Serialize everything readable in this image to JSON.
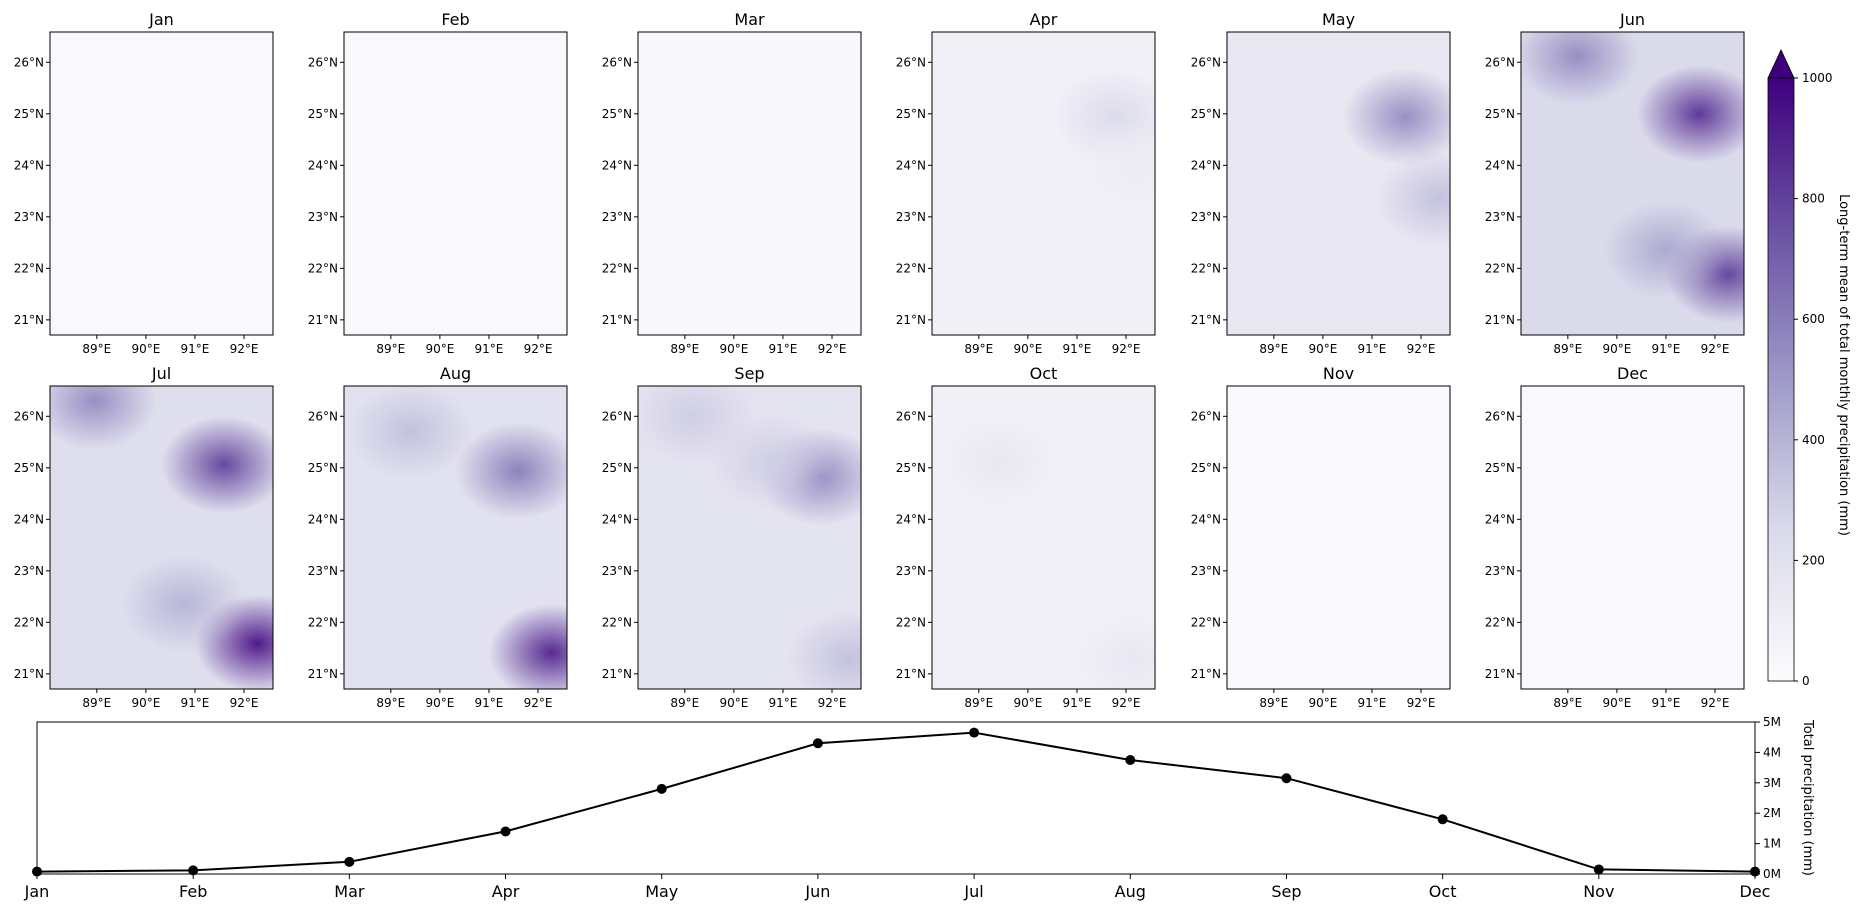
{
  "maps": {
    "lat_ticks": [
      "26°N",
      "25°N",
      "24°N",
      "23°N",
      "22°N",
      "21°N"
    ],
    "lon_ticks": [
      "89°E",
      "90°E",
      "91°E",
      "92°E"
    ],
    "panels": [
      {
        "title": "Jan",
        "level": 0.02,
        "hot": []
      },
      {
        "title": "Feb",
        "level": 0.02,
        "hot": []
      },
      {
        "title": "Mar",
        "level": 0.03,
        "hot": []
      },
      {
        "title": "Apr",
        "level": 0.08,
        "hot": [
          {
            "u": 0.82,
            "v": 0.28,
            "a": 0.25
          },
          {
            "u": 0.92,
            "v": 0.45,
            "a": 0.12
          }
        ]
      },
      {
        "title": "May",
        "level": 0.15,
        "hot": [
          {
            "u": 0.8,
            "v": 0.28,
            "a": 0.55
          },
          {
            "u": 0.95,
            "v": 0.55,
            "a": 0.35
          },
          {
            "u": 0.3,
            "v": 0.1,
            "a": 0.15
          }
        ]
      },
      {
        "title": "Jun",
        "level": 0.25,
        "hot": [
          {
            "u": 0.8,
            "v": 0.27,
            "a": 0.85
          },
          {
            "u": 0.93,
            "v": 0.8,
            "a": 0.8
          },
          {
            "u": 0.25,
            "v": 0.08,
            "a": 0.55
          },
          {
            "u": 0.65,
            "v": 0.72,
            "a": 0.45
          }
        ]
      },
      {
        "title": "Jul",
        "level": 0.22,
        "hot": [
          {
            "u": 0.78,
            "v": 0.26,
            "a": 0.8
          },
          {
            "u": 0.93,
            "v": 0.85,
            "a": 0.95
          },
          {
            "u": 0.2,
            "v": 0.05,
            "a": 0.55
          },
          {
            "u": 0.6,
            "v": 0.72,
            "a": 0.4
          }
        ]
      },
      {
        "title": "Aug",
        "level": 0.2,
        "hot": [
          {
            "u": 0.78,
            "v": 0.28,
            "a": 0.6
          },
          {
            "u": 0.93,
            "v": 0.88,
            "a": 0.9
          },
          {
            "u": 0.3,
            "v": 0.15,
            "a": 0.35
          }
        ]
      },
      {
        "title": "Sep",
        "level": 0.18,
        "hot": [
          {
            "u": 0.82,
            "v": 0.3,
            "a": 0.55
          },
          {
            "u": 0.25,
            "v": 0.1,
            "a": 0.3
          },
          {
            "u": 0.6,
            "v": 0.25,
            "a": 0.3
          },
          {
            "u": 0.95,
            "v": 0.9,
            "a": 0.35
          }
        ]
      },
      {
        "title": "Oct",
        "level": 0.08,
        "hot": [
          {
            "u": 0.3,
            "v": 0.25,
            "a": 0.15
          },
          {
            "u": 0.9,
            "v": 0.9,
            "a": 0.15
          }
        ]
      },
      {
        "title": "Nov",
        "level": 0.02,
        "hot": []
      },
      {
        "title": "Dec",
        "level": 0.02,
        "hot": []
      }
    ]
  },
  "colorbar": {
    "label": "Long-term mean of total monthly precipitation (mm)",
    "ticks": [
      "0",
      "200",
      "400",
      "600",
      "800",
      "1000"
    ],
    "min": 0,
    "max": 1000,
    "extend": "max",
    "colors": [
      "#fcfbfd",
      "#dadaeb",
      "#9e9ac8",
      "#6a51a3",
      "#3f007d"
    ]
  },
  "chart_data": {
    "type": "line",
    "categories": [
      "Jan",
      "Feb",
      "Mar",
      "Apr",
      "May",
      "Jun",
      "Jul",
      "Aug",
      "Sep",
      "Oct",
      "Nov",
      "Dec"
    ],
    "series": [
      {
        "values": [
          80000,
          120000,
          400000,
          1400000,
          2800000,
          4300000,
          4650000,
          3750000,
          3150000,
          1800000,
          150000,
          80000
        ]
      }
    ],
    "ylabel": "Total precipitation (mm)",
    "ylim": [
      0,
      5000000
    ],
    "yticks": [
      "0M",
      "1M",
      "2M",
      "3M",
      "4M",
      "5M"
    ],
    "ytick_values": [
      0,
      1000000,
      2000000,
      3000000,
      4000000,
      5000000
    ],
    "line_color": "#000000",
    "marker": "circle",
    "y_axis_side": "right",
    "grid": false
  }
}
